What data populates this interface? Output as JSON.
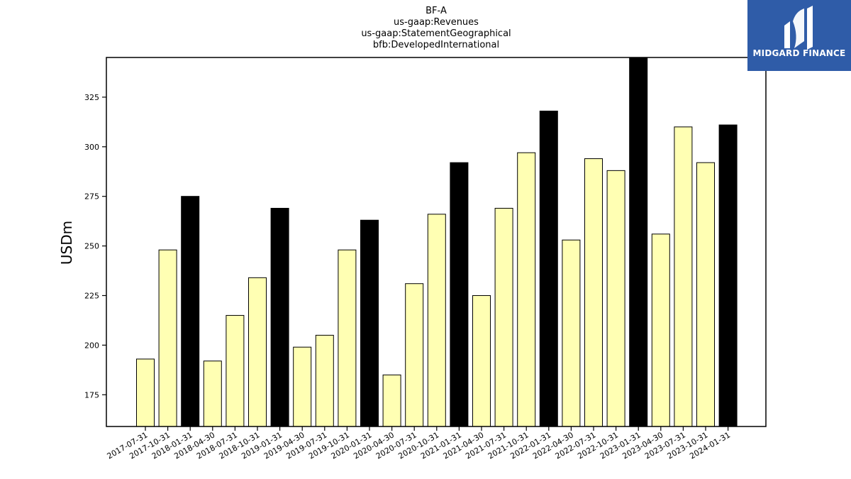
{
  "titles": [
    "BF-A",
    "us-gaap:Revenues",
    "us-gaap:StatementGeographical",
    "bfb:DevelopedInternational"
  ],
  "logo": {
    "text": "MIDGARD FINANCE",
    "bg_color": "#2f5ca8"
  },
  "colors": {
    "regular_bar": "#ffffb3",
    "q4_bar": "#000000",
    "axis": "#000000"
  },
  "chart_data": {
    "type": "bar",
    "title": "BF-A us-gaap:Revenues us-gaap:StatementGeographical bfb:DevelopedInternational",
    "xlabel": "",
    "ylabel": "USDm",
    "ylim": [
      159,
      345
    ],
    "yticks": [
      175,
      200,
      225,
      250,
      275,
      300,
      325
    ],
    "grid": false,
    "categories": [
      "2017-07-31",
      "2017-10-31",
      "2018-01-31",
      "2018-04-30",
      "2018-07-31",
      "2018-10-31",
      "2019-01-31",
      "2019-04-30",
      "2019-07-31",
      "2019-10-31",
      "2020-01-31",
      "2020-04-30",
      "2020-07-31",
      "2020-10-31",
      "2021-01-31",
      "2021-04-30",
      "2021-07-31",
      "2021-10-31",
      "2022-01-31",
      "2022-04-30",
      "2022-07-31",
      "2022-10-31",
      "2023-01-31",
      "2023-04-30",
      "2023-07-31",
      "2023-10-31",
      "2024-01-31"
    ],
    "values": [
      193,
      248,
      275,
      192,
      215,
      234,
      269,
      199,
      205,
      248,
      263,
      185,
      231,
      266,
      292,
      225,
      269,
      297,
      318,
      253,
      294,
      288,
      345,
      256,
      310,
      292,
      311
    ],
    "highlight": [
      false,
      false,
      true,
      false,
      false,
      false,
      true,
      false,
      false,
      false,
      true,
      false,
      false,
      false,
      true,
      false,
      false,
      false,
      true,
      false,
      false,
      false,
      true,
      false,
      false,
      false,
      true
    ]
  }
}
